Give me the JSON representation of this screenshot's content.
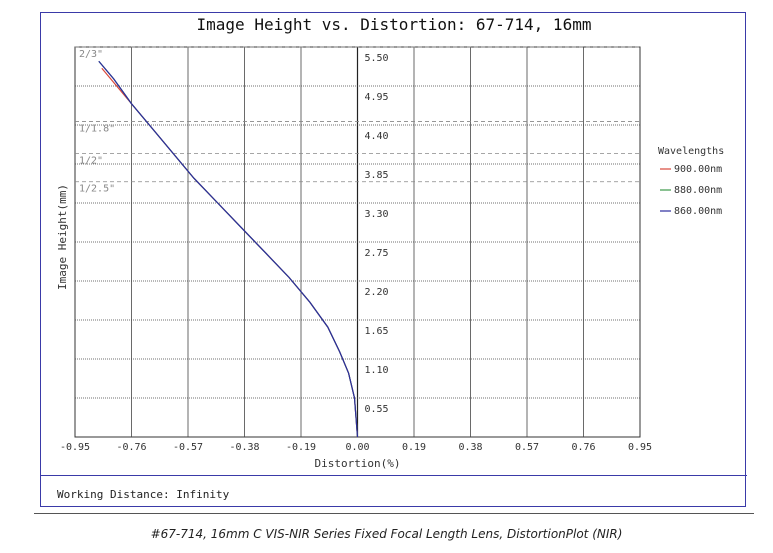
{
  "caption": "#67-714, 16mm C VIS-NIR Series Fixed Focal Length Lens, DistortionPlot (NIR)",
  "working_distance": "Working Distance: Infinity",
  "chart_data": {
    "type": "line",
    "title": "Image Height vs. Distortion: 67-714, 16mm",
    "xlabel": "Distortion(%)",
    "ylabel": "Image Height(mm)",
    "xlim": [
      -0.95,
      0.95
    ],
    "ylim": [
      0,
      5.5
    ],
    "x_ticks": [
      "-0.95",
      "-0.76",
      "-0.57",
      "-0.38",
      "-0.19",
      "0.00",
      "0.19",
      "0.38",
      "0.57",
      "0.76",
      "0.95"
    ],
    "x_tick_values": [
      -0.95,
      -0.76,
      -0.57,
      -0.38,
      -0.19,
      0,
      0.19,
      0.38,
      0.57,
      0.76,
      0.95
    ],
    "y_ticks": [
      "0.55",
      "1.10",
      "1.65",
      "2.20",
      "2.75",
      "3.30",
      "3.85",
      "4.40",
      "4.95",
      "5.50"
    ],
    "y_tick_values": [
      0.55,
      1.1,
      1.65,
      2.2,
      2.75,
      3.3,
      3.85,
      4.4,
      4.95,
      5.5
    ],
    "grid": true,
    "sensor_formats": [
      {
        "label": "2/3\"",
        "y": 5.5
      },
      {
        "label": "1/1.8\"",
        "y": 4.45
      },
      {
        "label": "1/2\"",
        "y": 4.0
      },
      {
        "label": "1/2.5\"",
        "y": 3.6
      }
    ],
    "legend_title": "Wavelengths",
    "legend_position": "right",
    "series": [
      {
        "name": "900.00nm",
        "color": "#d9483b",
        "x": [
          0,
          -0.01,
          -0.03,
          -0.06,
          -0.1,
          -0.16,
          -0.23,
          -0.31,
          -0.39,
          -0.47,
          -0.55,
          -0.62,
          -0.69,
          -0.76,
          -0.83,
          -0.86
        ],
        "y": [
          0,
          0.55,
          0.9,
          1.2,
          1.55,
          1.9,
          2.25,
          2.6,
          2.95,
          3.3,
          3.65,
          4.0,
          4.35,
          4.7,
          5.05,
          5.2
        ]
      },
      {
        "name": "880.00nm",
        "color": "#3c9a4a",
        "x": [
          0,
          -0.01,
          -0.03,
          -0.06,
          -0.1,
          -0.16,
          -0.23,
          -0.31,
          -0.39,
          -0.47,
          -0.55,
          -0.62,
          -0.69,
          -0.76,
          -0.82,
          -0.87
        ],
        "y": [
          0,
          0.55,
          0.9,
          1.2,
          1.55,
          1.9,
          2.25,
          2.6,
          2.95,
          3.3,
          3.65,
          4.0,
          4.35,
          4.7,
          5.05,
          5.3
        ]
      },
      {
        "name": "860.00nm",
        "color": "#2c2c9e",
        "x": [
          0,
          -0.01,
          -0.03,
          -0.06,
          -0.1,
          -0.16,
          -0.23,
          -0.31,
          -0.39,
          -0.47,
          -0.55,
          -0.62,
          -0.69,
          -0.76,
          -0.82,
          -0.87
        ],
        "y": [
          0,
          0.55,
          0.9,
          1.2,
          1.55,
          1.9,
          2.25,
          2.6,
          2.95,
          3.3,
          3.65,
          4.0,
          4.35,
          4.7,
          5.05,
          5.3
        ]
      }
    ]
  }
}
